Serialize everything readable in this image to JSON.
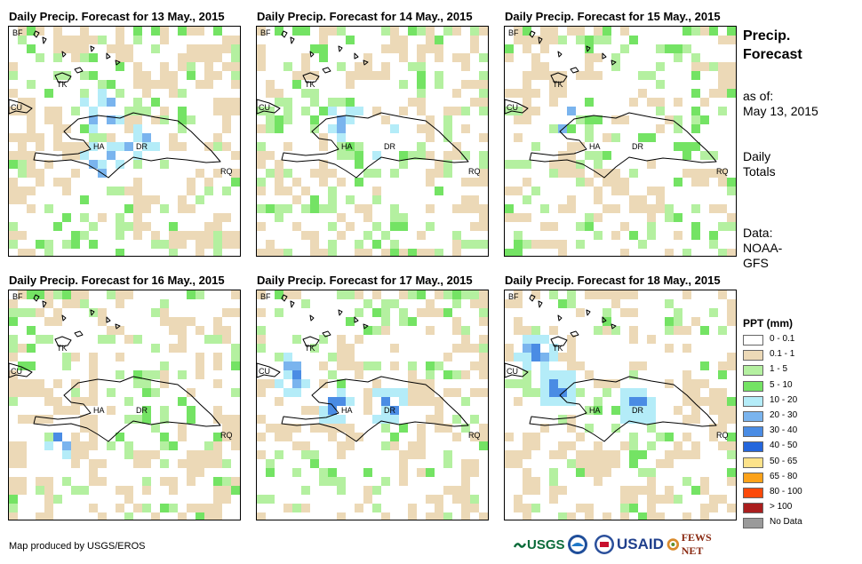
{
  "panels": [
    {
      "title": "Daily Precip. Forecast for 13 May., 2015"
    },
    {
      "title": "Daily Precip. Forecast for 14 May., 2015"
    },
    {
      "title": "Daily Precip. Forecast for 15 May., 2015"
    },
    {
      "title": "Daily Precip. Forecast for 16 May., 2015"
    },
    {
      "title": "Daily Precip. Forecast for 17 May., 2015"
    },
    {
      "title": "Daily Precip. Forecast for 18 May., 2015"
    }
  ],
  "map_labels": {
    "bf": "BF",
    "cu": "CU",
    "tk": "TK",
    "ha": "HA",
    "dr": "DR",
    "rq": "RQ"
  },
  "side": {
    "heading_line1": "Precip.",
    "heading_line2": "Forecast",
    "asof_line1": "as of:",
    "asof_line2": "May 13, 2015",
    "totals_line1": "Daily",
    "totals_line2": "Totals",
    "data_line1": "Data:",
    "data_line2": "NOAA-",
    "data_line3": "GFS"
  },
  "legend": {
    "title": "PPT (mm)",
    "items": [
      {
        "label": "0 - 0.1",
        "color": "#ffffff"
      },
      {
        "label": "0.1 - 1",
        "color": "#ecd9b7"
      },
      {
        "label": "1 - 5",
        "color": "#b4f0a0"
      },
      {
        "label": "5 - 10",
        "color": "#74e364"
      },
      {
        "label": "10 - 20",
        "color": "#b4ecf8"
      },
      {
        "label": "20 - 30",
        "color": "#7ab4ee"
      },
      {
        "label": "30 - 40",
        "color": "#4a8ce4"
      },
      {
        "label": "40 - 50",
        "color": "#2466dc"
      },
      {
        "label": "50 - 65",
        "color": "#fce28a"
      },
      {
        "label": "65 - 80",
        "color": "#fca21a"
      },
      {
        "label": "80 - 100",
        "color": "#fc4a0a"
      },
      {
        "label": "> 100",
        "color": "#aa1e1e"
      },
      {
        "label": "No Data",
        "color": "#9a9a9a"
      }
    ]
  },
  "credit": "Map produced by USGS/EROS",
  "logos": {
    "usgs": "USGS",
    "usaid": "USAID",
    "fewsnet": "FEWS NET"
  }
}
